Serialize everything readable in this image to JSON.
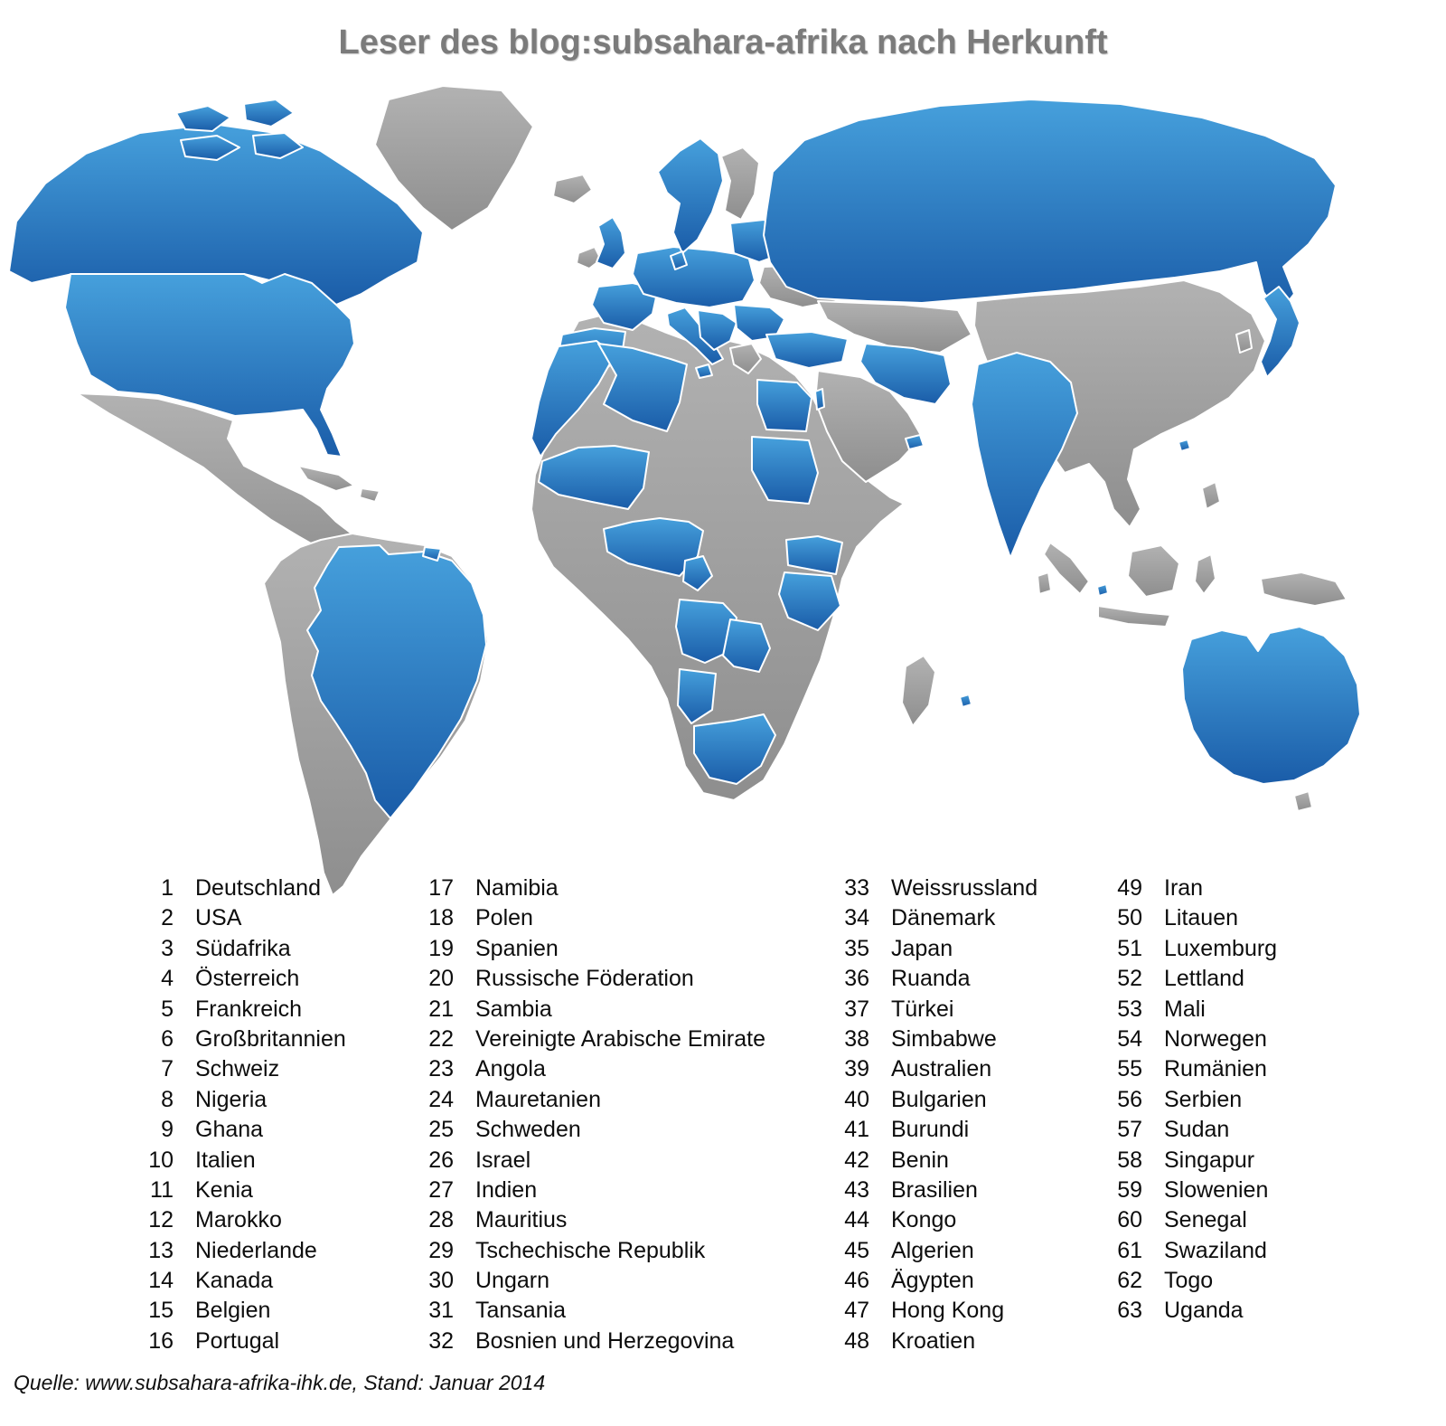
{
  "title": "Leser des blog:subsahara-afrika nach Herkunft",
  "source": "Quelle: www.subsahara-afrika-ihk.de, Stand: Januar 2014",
  "map": {
    "highlight_gradient_top": "#46A0DC",
    "highlight_gradient_bottom": "#1A5CA8",
    "base_gray_top": "#B2B2B2",
    "base_gray_bottom": "#8E8E8E",
    "border_color": "#FFFFFF"
  },
  "legend": {
    "columns": [
      {
        "items": [
          {
            "num": "1",
            "label": "Deutschland"
          },
          {
            "num": "2",
            "label": "USA"
          },
          {
            "num": "3",
            "label": "Südafrika"
          },
          {
            "num": "4",
            "label": "Österreich"
          },
          {
            "num": "5",
            "label": "Frankreich"
          },
          {
            "num": "6",
            "label": "Großbritannien"
          },
          {
            "num": "7",
            "label": "Schweiz"
          },
          {
            "num": "8",
            "label": "Nigeria"
          },
          {
            "num": "9",
            "label": "Ghana"
          },
          {
            "num": "10",
            "label": "Italien"
          },
          {
            "num": "11",
            "label": "Kenia"
          },
          {
            "num": "12",
            "label": "Marokko"
          },
          {
            "num": "13",
            "label": "Niederlande"
          },
          {
            "num": "14",
            "label": "Kanada"
          },
          {
            "num": "15",
            "label": "Belgien"
          },
          {
            "num": "16",
            "label": "Portugal"
          }
        ]
      },
      {
        "items": [
          {
            "num": "17",
            "label": "Namibia"
          },
          {
            "num": "18",
            "label": "Polen"
          },
          {
            "num": "19",
            "label": "Spanien"
          },
          {
            "num": "20",
            "label": "Russische Föderation"
          },
          {
            "num": "21",
            "label": "Sambia"
          },
          {
            "num": "22",
            "label": "Vereinigte Arabische Emirate"
          },
          {
            "num": "23",
            "label": "Angola"
          },
          {
            "num": "24",
            "label": "Mauretanien"
          },
          {
            "num": "25",
            "label": "Schweden"
          },
          {
            "num": "26",
            "label": "Israel"
          },
          {
            "num": "27",
            "label": "Indien"
          },
          {
            "num": "28",
            "label": "Mauritius"
          },
          {
            "num": "29",
            "label": "Tschechische Republik"
          },
          {
            "num": "30",
            "label": "Ungarn"
          },
          {
            "num": "31",
            "label": "Tansania"
          },
          {
            "num": "32",
            "label": "Bosnien und Herzegovina"
          }
        ]
      },
      {
        "items": [
          {
            "num": "33",
            "label": "Weissrussland"
          },
          {
            "num": "34",
            "label": "Dänemark"
          },
          {
            "num": "35",
            "label": "Japan"
          },
          {
            "num": "36",
            "label": "Ruanda"
          },
          {
            "num": "37",
            "label": "Türkei"
          },
          {
            "num": "38",
            "label": "Simbabwe"
          },
          {
            "num": "39",
            "label": "Australien"
          },
          {
            "num": "40",
            "label": "Bulgarien"
          },
          {
            "num": "41",
            "label": "Burundi"
          },
          {
            "num": "42",
            "label": "Benin"
          },
          {
            "num": "43",
            "label": "Brasilien"
          },
          {
            "num": "44",
            "label": "Kongo"
          },
          {
            "num": "45",
            "label": "Algerien"
          },
          {
            "num": "46",
            "label": "Ägypten"
          },
          {
            "num": "47",
            "label": "Hong Kong"
          },
          {
            "num": "48",
            "label": "Kroatien"
          }
        ]
      },
      {
        "items": [
          {
            "num": "49",
            "label": "Iran"
          },
          {
            "num": "50",
            "label": "Litauen"
          },
          {
            "num": "51",
            "label": "Luxemburg"
          },
          {
            "num": "52",
            "label": "Lettland"
          },
          {
            "num": "53",
            "label": "Mali"
          },
          {
            "num": "54",
            "label": "Norwegen"
          },
          {
            "num": "55",
            "label": "Rumänien"
          },
          {
            "num": "56",
            "label": "Serbien"
          },
          {
            "num": "57",
            "label": "Sudan"
          },
          {
            "num": "58",
            "label": "Singapur"
          },
          {
            "num": "59",
            "label": "Slowenien"
          },
          {
            "num": "60",
            "label": "Senegal"
          },
          {
            "num": "61",
            "label": "Swaziland"
          },
          {
            "num": "62",
            "label": "Togo"
          },
          {
            "num": "63",
            "label": "Uganda"
          }
        ]
      }
    ]
  }
}
